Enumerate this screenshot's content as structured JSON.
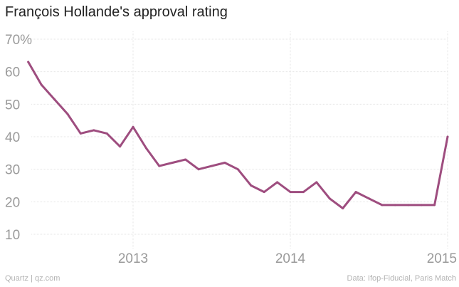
{
  "chart_data": {
    "type": "line",
    "title": "François Hollande's approval rating",
    "xlabel": "",
    "ylabel": "",
    "ylim": [
      4,
      70
    ],
    "yticks": [
      "10",
      "20",
      "30",
      "40",
      "50",
      "60",
      "70%"
    ],
    "ytick_values": [
      10,
      20,
      30,
      40,
      50,
      60,
      70
    ],
    "xticks": [
      "2013",
      "2014",
      "2015"
    ],
    "xtick_values": [
      "2013-01",
      "2014-01",
      "2015-01"
    ],
    "grid": true,
    "colors": {
      "line": "#9e4d7f",
      "grid": "#e6e6e6",
      "tick_text": "#9a9a9a"
    },
    "series": [
      {
        "x": [
          "2012-05",
          "2012-06",
          "2012-07",
          "2012-08",
          "2012-09",
          "2012-10",
          "2012-11",
          "2012-12",
          "2013-01",
          "2013-02",
          "2013-03",
          "2013-04",
          "2013-05",
          "2013-06",
          "2013-07",
          "2013-08",
          "2013-09",
          "2013-10",
          "2013-11",
          "2013-12",
          "2014-01",
          "2014-02",
          "2014-03",
          "2014-04",
          "2014-05",
          "2014-06",
          "2014-07",
          "2014-08",
          "2014-09",
          "2014-10",
          "2014-11",
          "2014-12",
          "2015-01"
        ],
        "values": [
          63,
          56,
          51.5,
          47,
          41,
          42,
          41,
          37,
          43,
          36.5,
          31,
          32,
          33,
          30,
          31,
          32,
          30,
          25,
          23,
          26,
          23,
          23,
          26,
          21,
          18,
          23,
          21,
          19,
          19,
          19,
          19,
          19,
          40
        ]
      }
    ]
  },
  "footer": {
    "source_left": "Quartz | qz.com",
    "source_right": "Data: Ifop-Fiducial, Paris Match"
  }
}
